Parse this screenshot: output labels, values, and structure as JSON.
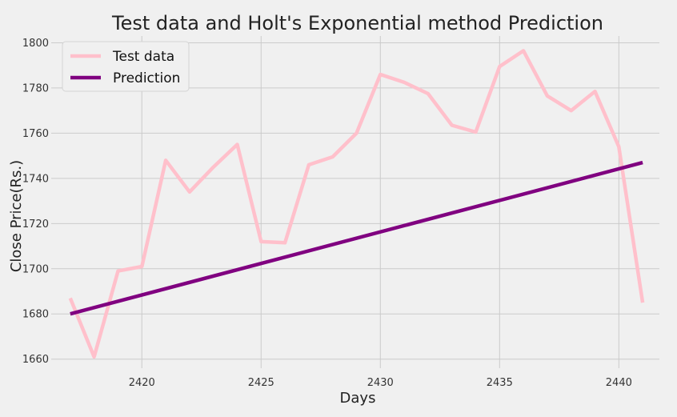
{
  "chart_data": {
    "type": "line",
    "title": "Test data and Holt's Exponential method Prediction",
    "xlabel": "Days",
    "ylabel": "Close Price(Rs.)",
    "xlim": [
      2416.2,
      2441.7
    ],
    "ylim": [
      1656,
      1803
    ],
    "x_ticks": [
      2420,
      2425,
      2430,
      2435,
      2440
    ],
    "y_ticks": [
      1660,
      1680,
      1700,
      1720,
      1740,
      1760,
      1780,
      1800
    ],
    "grid": true,
    "legend_position": "top-left",
    "background": "#f0f0f0",
    "series": [
      {
        "name": "Test data",
        "color": "#ffc0cb",
        "x": [
          2417,
          2418,
          2419,
          2420,
          2421,
          2422,
          2423,
          2424,
          2425,
          2426,
          2427,
          2428,
          2429,
          2430,
          2431,
          2432,
          2433,
          2434,
          2435,
          2436,
          2437,
          2438,
          2439,
          2440,
          2441
        ],
        "y": [
          1687,
          1661,
          1699,
          1701,
          1748,
          1734,
          1745,
          1755,
          1712,
          1711.5,
          1746,
          1749.5,
          1760,
          1786,
          1782.5,
          1777.5,
          1763.5,
          1760.5,
          1789.5,
          1796.5,
          1776.5,
          1770,
          1778.5,
          1754,
          1685
        ]
      },
      {
        "name": "Prediction",
        "color": "#800080",
        "x": [
          2417,
          2441
        ],
        "y": [
          1680,
          1747
        ]
      }
    ]
  }
}
